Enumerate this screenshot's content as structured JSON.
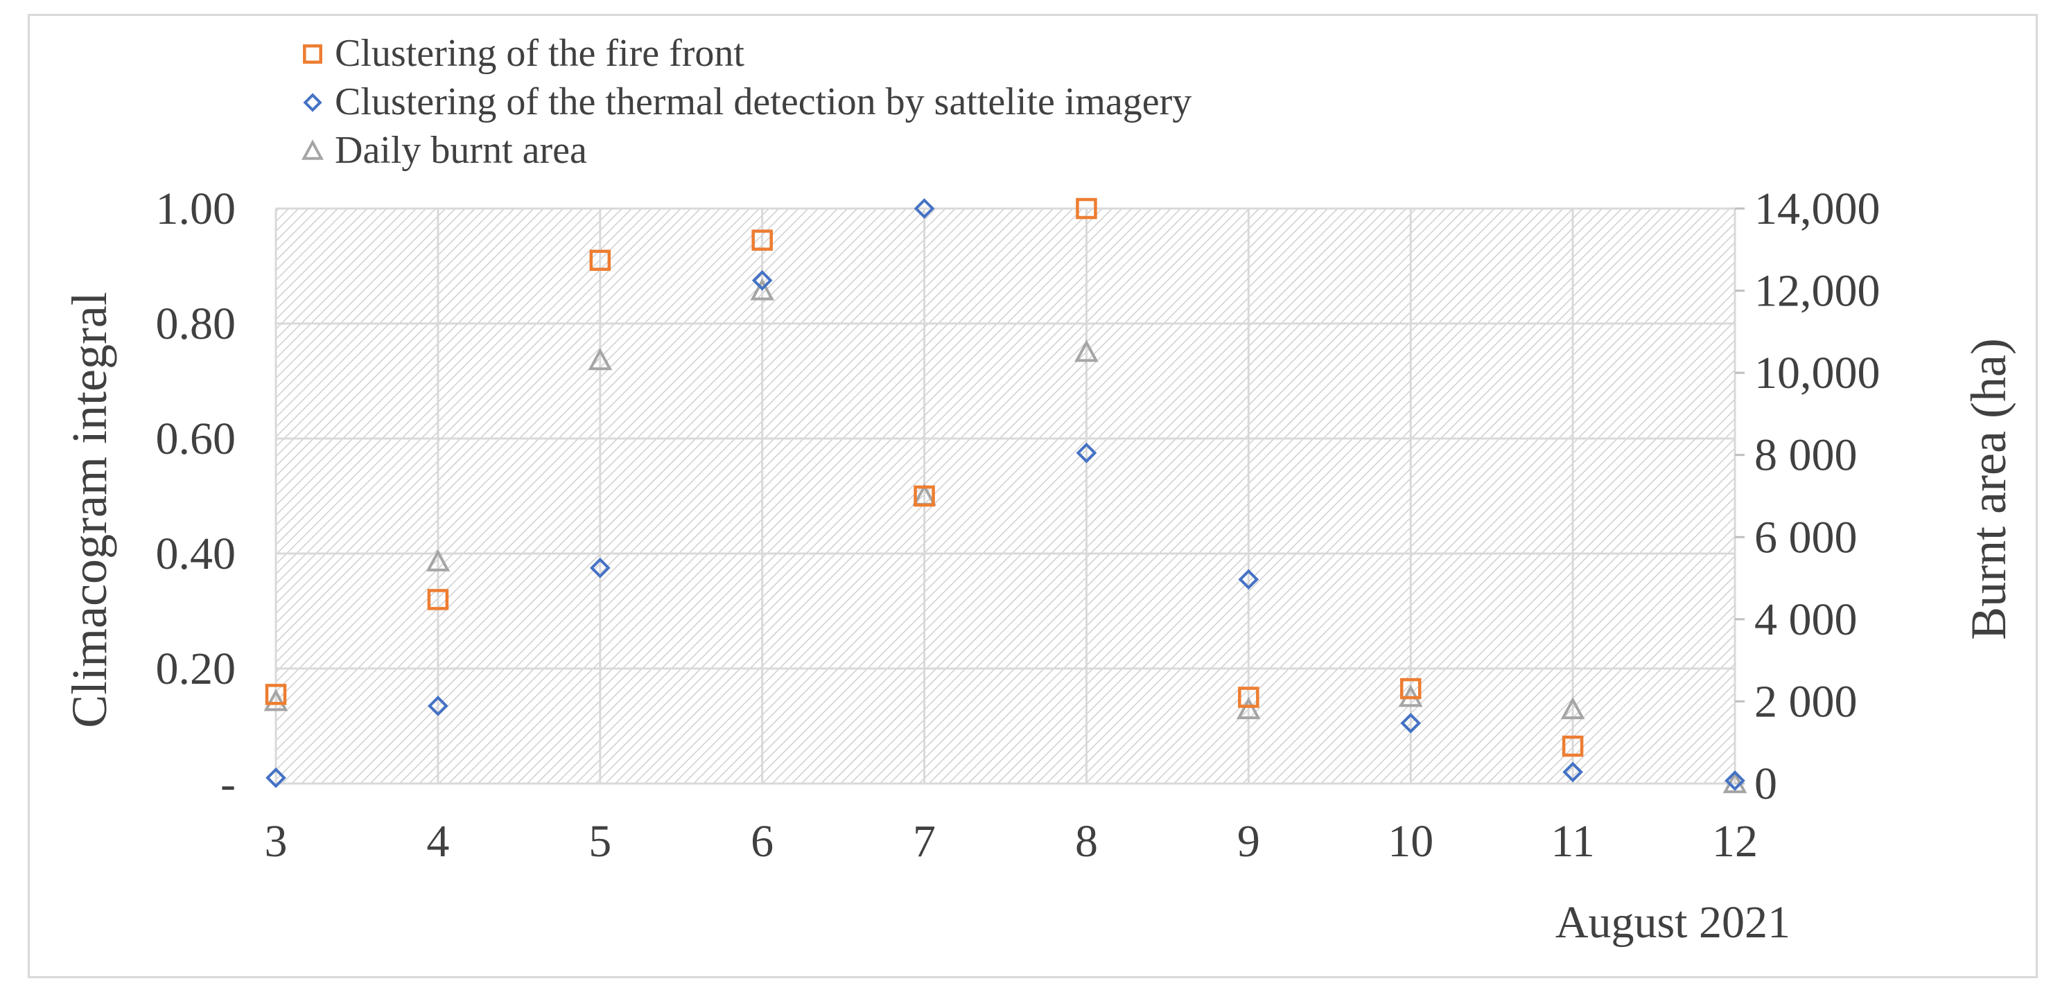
{
  "chart_data": {
    "type": "scatter",
    "title": "",
    "xlabel": "August 2021",
    "ylabel": "Climacogram integral",
    "y2label": "Burnt area (ha)",
    "x": [
      3,
      4,
      5,
      6,
      7,
      8,
      9,
      10,
      11,
      12
    ],
    "x_tick_labels": [
      "3",
      "4",
      "5",
      "6",
      "7",
      "8",
      "9",
      "10",
      "11",
      "12"
    ],
    "ylim": [
      0,
      1.0
    ],
    "y_tick_labels": [
      "-",
      "0.20",
      "0.40",
      "0.60",
      "0.80",
      "1.00"
    ],
    "y2lim": [
      0,
      14000
    ],
    "y2_tick_labels": [
      "0",
      "2 000",
      "4 000",
      "6 000",
      "8 000",
      "10,000",
      "12,000",
      "14,000"
    ],
    "grid": true,
    "legend_position": "top-left",
    "series": [
      {
        "name": "Clustering of the fire front",
        "axis": "left",
        "marker": "square",
        "color": "#ED7D31",
        "values": [
          0.155,
          0.32,
          0.91,
          0.945,
          0.5,
          1.0,
          0.15,
          0.165,
          0.065,
          null
        ]
      },
      {
        "name": "Clustering of the thermal detection by sattelite imagery",
        "axis": "left",
        "marker": "diamond",
        "color": "#4472C4",
        "values": [
          0.01,
          0.135,
          0.375,
          0.875,
          1.0,
          0.575,
          0.355,
          0.105,
          0.02,
          0.005
        ]
      },
      {
        "name": "Daily burnt area",
        "axis": "right",
        "marker": "triangle",
        "color": "#A5A5A5",
        "values": [
          2000,
          5400,
          10300,
          12000,
          7000,
          10500,
          1800,
          2100,
          1800,
          0
        ]
      }
    ]
  }
}
